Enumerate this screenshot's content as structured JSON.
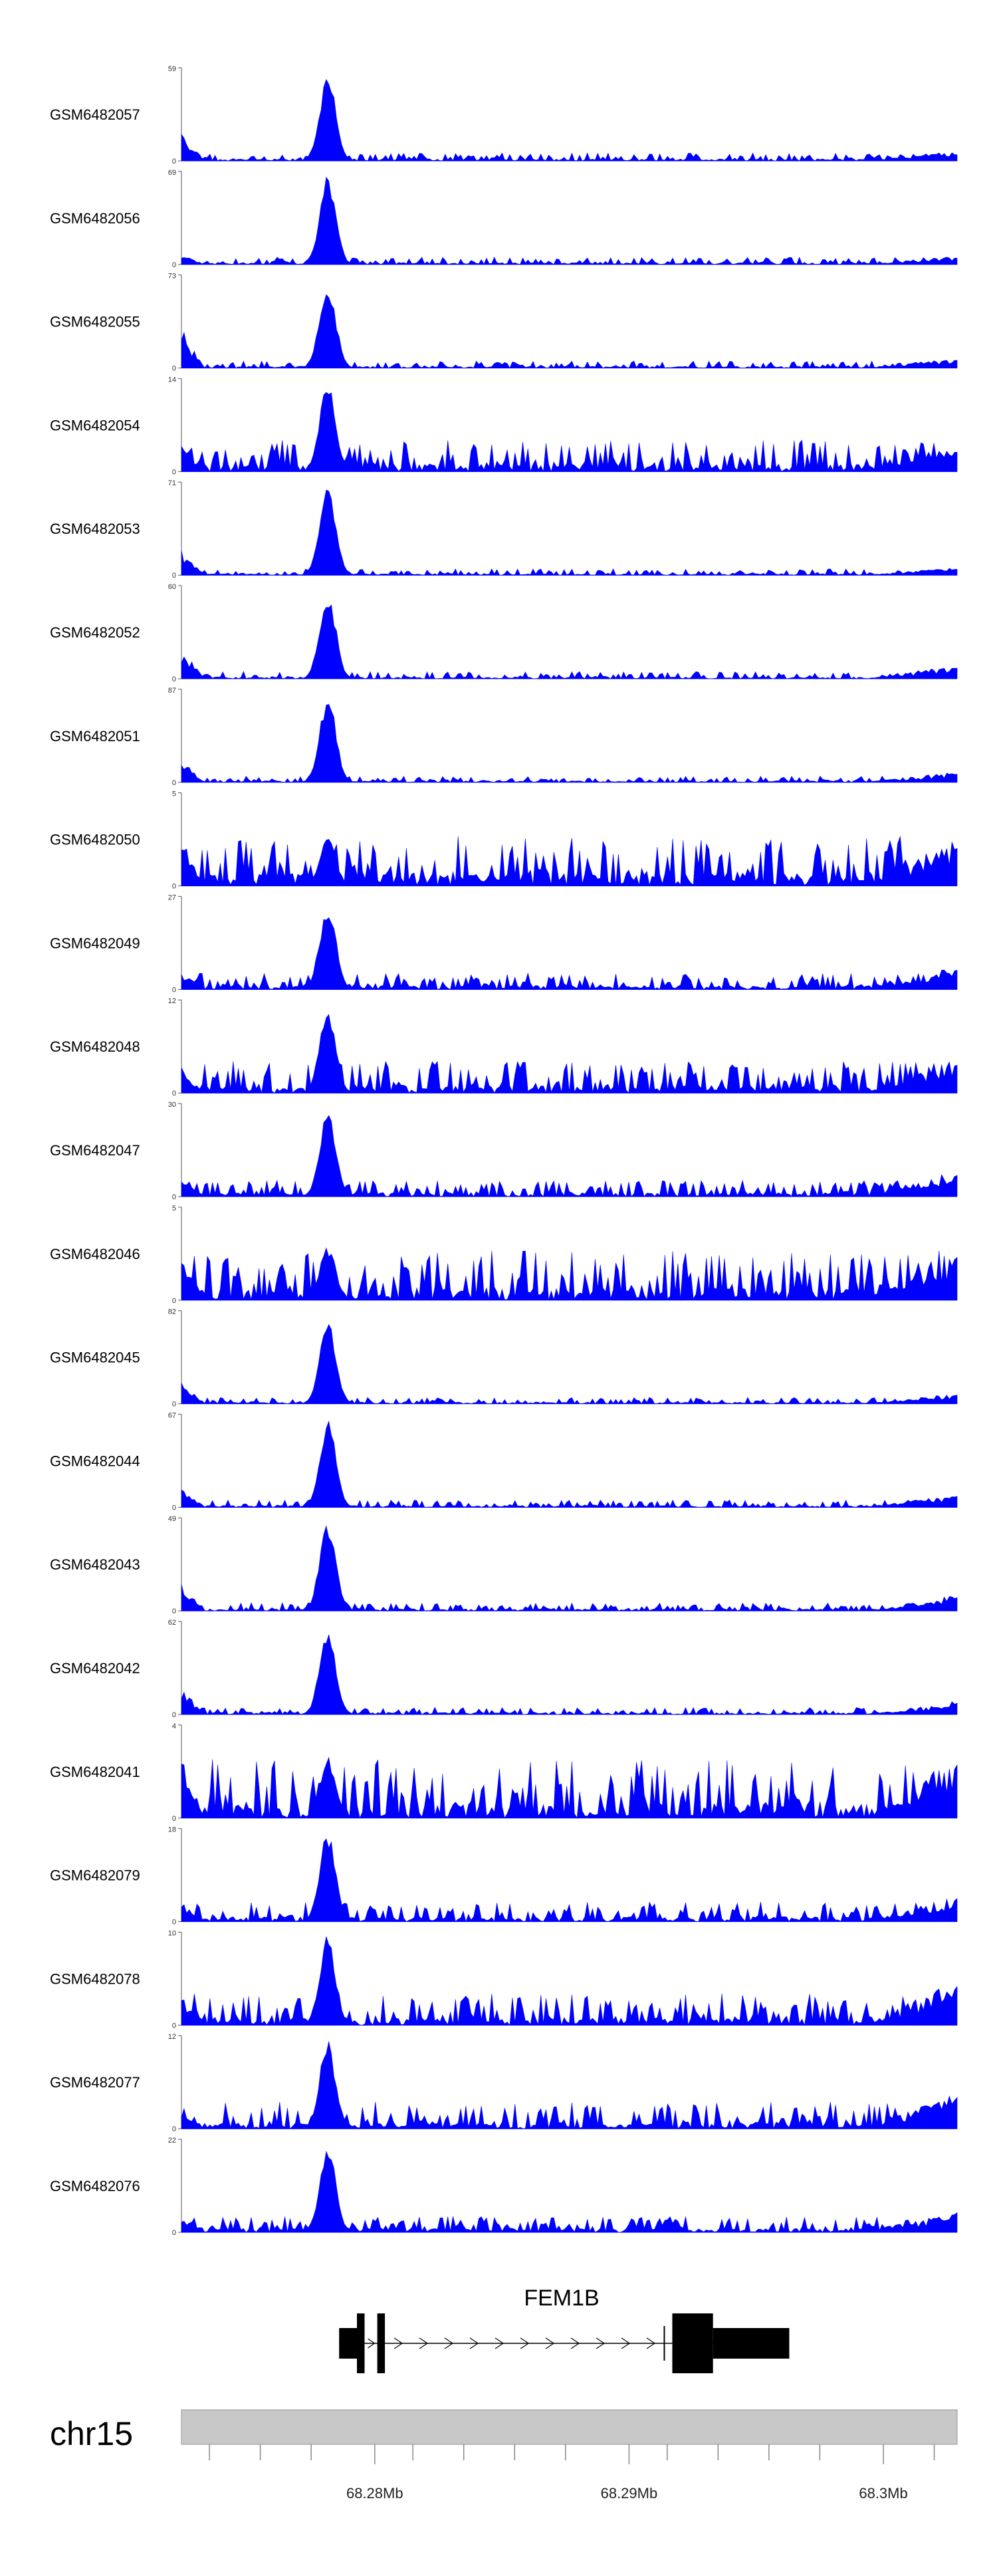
{
  "chart_data": {
    "type": "area",
    "color_signal": "#0000ff",
    "color_gene": "#000000",
    "color_ideogram": "#c8c8c8",
    "x_range_mb": [
      68.2724,
      68.3029
    ],
    "tracks": [
      {
        "name": "GSM6482057",
        "ymax": "59",
        "ymax_value": 59,
        "baseline": "0",
        "noise": 0.09,
        "peak": 1.0,
        "left": 0.3,
        "tail": 0.1,
        "seed": 1
      },
      {
        "name": "GSM6482056",
        "ymax": "69",
        "ymax_value": 69,
        "baseline": "0",
        "noise": 0.08,
        "peak": 1.0,
        "left": 0.12,
        "tail": 0.1,
        "seed": 2
      },
      {
        "name": "GSM6482055",
        "ymax": "73",
        "ymax_value": 73,
        "baseline": "0",
        "noise": 0.08,
        "peak": 1.0,
        "left": 0.45,
        "tail": 0.12,
        "seed": 3
      },
      {
        "name": "GSM6482054",
        "ymax": "14",
        "ymax_value": 14,
        "baseline": "0",
        "noise": 0.35,
        "peak": 1.0,
        "left": 0.35,
        "tail": 0.3,
        "seed": 4
      },
      {
        "name": "GSM6482053",
        "ymax": "71",
        "ymax_value": 71,
        "baseline": "0",
        "noise": 0.07,
        "peak": 1.0,
        "left": 0.3,
        "tail": 0.09,
        "seed": 5
      },
      {
        "name": "GSM6482052",
        "ymax": "60",
        "ymax_value": 60,
        "baseline": "0",
        "noise": 0.08,
        "peak": 1.0,
        "left": 0.35,
        "tail": 0.16,
        "seed": 6
      },
      {
        "name": "GSM6482051",
        "ymax": "87",
        "ymax_value": 87,
        "baseline": "0",
        "noise": 0.07,
        "peak": 1.0,
        "left": 0.3,
        "tail": 0.12,
        "seed": 7
      },
      {
        "name": "GSM6482050",
        "ymax": "5",
        "ymax_value": 5,
        "baseline": "0",
        "noise": 0.55,
        "peak": 0.55,
        "left": 0.55,
        "tail": 0.55,
        "seed": 8
      },
      {
        "name": "GSM6482049",
        "ymax": "27",
        "ymax_value": 27,
        "baseline": "0",
        "noise": 0.18,
        "peak": 1.0,
        "left": 0.2,
        "tail": 0.28,
        "seed": 9
      },
      {
        "name": "GSM6482048",
        "ymax": "12",
        "ymax_value": 12,
        "baseline": "0",
        "noise": 0.35,
        "peak": 1.0,
        "left": 0.3,
        "tail": 0.4,
        "seed": 10
      },
      {
        "name": "GSM6482047",
        "ymax": "30",
        "ymax_value": 30,
        "baseline": "0",
        "noise": 0.18,
        "peak": 0.95,
        "left": 0.25,
        "tail": 0.3,
        "seed": 11
      },
      {
        "name": "GSM6482046",
        "ymax": "5",
        "ymax_value": 5,
        "baseline": "0",
        "noise": 0.55,
        "peak": 0.6,
        "left": 0.5,
        "tail": 0.6,
        "seed": 12
      },
      {
        "name": "GSM6482045",
        "ymax": "82",
        "ymax_value": 82,
        "baseline": "0",
        "noise": 0.07,
        "peak": 1.0,
        "left": 0.3,
        "tail": 0.12,
        "seed": 13
      },
      {
        "name": "GSM6482044",
        "ymax": "67",
        "ymax_value": 67,
        "baseline": "0",
        "noise": 0.08,
        "peak": 1.0,
        "left": 0.22,
        "tail": 0.15,
        "seed": 14
      },
      {
        "name": "GSM6482043",
        "ymax": "49",
        "ymax_value": 49,
        "baseline": "0",
        "noise": 0.09,
        "peak": 1.0,
        "left": 0.3,
        "tail": 0.18,
        "seed": 15
      },
      {
        "name": "GSM6482042",
        "ymax": "62",
        "ymax_value": 62,
        "baseline": "0",
        "noise": 0.08,
        "peak": 1.0,
        "left": 0.3,
        "tail": 0.15,
        "seed": 16
      },
      {
        "name": "GSM6482041",
        "ymax": "4",
        "ymax_value": 4,
        "baseline": "0",
        "noise": 0.65,
        "peak": 0.7,
        "left": 0.7,
        "tail": 0.7,
        "seed": 17
      },
      {
        "name": "GSM6482079",
        "ymax": "18",
        "ymax_value": 18,
        "baseline": "0",
        "noise": 0.22,
        "peak": 1.0,
        "left": 0.2,
        "tail": 0.3,
        "seed": 18
      },
      {
        "name": "GSM6482078",
        "ymax": "10",
        "ymax_value": 10,
        "baseline": "0",
        "noise": 0.35,
        "peak": 1.0,
        "left": 0.3,
        "tail": 0.5,
        "seed": 19
      },
      {
        "name": "GSM6482077",
        "ymax": "12",
        "ymax_value": 12,
        "baseline": "0",
        "noise": 0.3,
        "peak": 1.0,
        "left": 0.25,
        "tail": 0.4,
        "seed": 20
      },
      {
        "name": "GSM6482076",
        "ymax": "22",
        "ymax_value": 22,
        "baseline": "0",
        "noise": 0.18,
        "peak": 1.0,
        "left": 0.18,
        "tail": 0.25,
        "seed": 21
      }
    ],
    "peak_region_mb": [
      68.2778,
      68.2785
    ],
    "gene": {
      "name": "FEM1B",
      "strand": "+",
      "blocks_mb": [
        {
          "start": 68.2786,
          "end": 68.2793,
          "kind": "utr"
        },
        {
          "start": 68.2793,
          "end": 68.2796,
          "kind": "exon"
        },
        {
          "start": 68.2801,
          "end": 68.2804,
          "kind": "exon"
        },
        {
          "start": 68.2917,
          "end": 68.2933,
          "kind": "exon"
        },
        {
          "start": 68.2933,
          "end": 68.2963,
          "kind": "utr"
        }
      ],
      "span_mb": [
        68.2786,
        68.2963
      ]
    },
    "chromosome": "chr15",
    "ticks": [
      {
        "value": 68.2735,
        "label": ""
      },
      {
        "value": 68.2755,
        "label": ""
      },
      {
        "value": 68.2775,
        "label": ""
      },
      {
        "value": 68.28,
        "label": "68.28Mb"
      },
      {
        "value": 68.2815,
        "label": ""
      },
      {
        "value": 68.2835,
        "label": ""
      },
      {
        "value": 68.2855,
        "label": ""
      },
      {
        "value": 68.2875,
        "label": ""
      },
      {
        "value": 68.29,
        "label": "68.29Mb"
      },
      {
        "value": 68.2915,
        "label": ""
      },
      {
        "value": 68.2935,
        "label": ""
      },
      {
        "value": 68.2955,
        "label": ""
      },
      {
        "value": 68.2975,
        "label": ""
      },
      {
        "value": 68.3,
        "label": "68.3Mb"
      },
      {
        "value": 68.302,
        "label": ""
      }
    ]
  }
}
